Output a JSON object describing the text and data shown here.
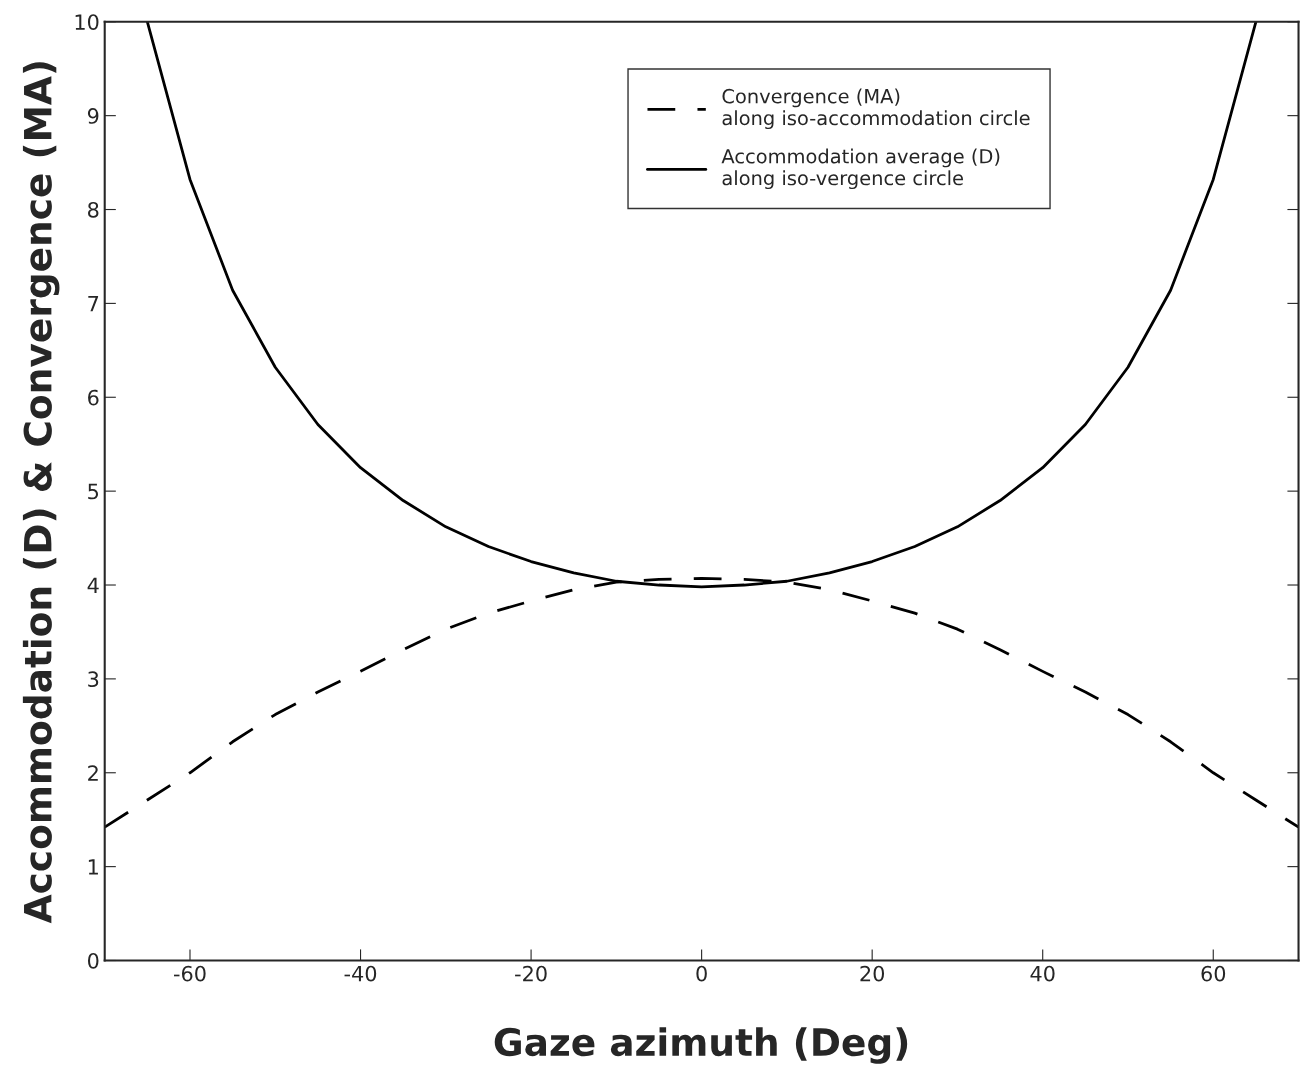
{
  "chart_data": {
    "type": "line",
    "xlabel": "Gaze azimuth (Deg)",
    "ylabel": "Accommodation (D) & Convergence (MA)",
    "xlim": [
      -70,
      70
    ],
    "ylim": [
      0,
      10
    ],
    "xticks": [
      -60,
      -40,
      -20,
      0,
      20,
      40,
      60
    ],
    "yticks": [
      0,
      1,
      2,
      3,
      4,
      5,
      6,
      7,
      8,
      9,
      10
    ],
    "grid": false,
    "legend": "top right",
    "marker": "none",
    "series": [
      {
        "name": "Convergence (MA)\nalong iso-accommodation circle",
        "color": "#000000",
        "line_style": "dashed",
        "x": [
          -70,
          -65,
          -60,
          -55,
          -50,
          -45,
          -40,
          -35,
          -30,
          -25,
          -20,
          -15,
          -10,
          -5,
          0,
          5,
          10,
          15,
          20,
          25,
          30,
          35,
          40,
          45,
          50,
          55,
          60,
          65,
          70
        ],
        "values": [
          1.42,
          1.71,
          2.0,
          2.33,
          2.62,
          2.86,
          3.08,
          3.31,
          3.53,
          3.7,
          3.83,
          3.95,
          4.03,
          4.06,
          4.07,
          4.06,
          4.03,
          3.95,
          3.83,
          3.7,
          3.53,
          3.31,
          3.08,
          2.86,
          2.62,
          2.33,
          2.0,
          1.71,
          1.42
        ]
      },
      {
        "name": "Accommodation average (D)\nalong iso-vergence circle",
        "color": "#000000",
        "line_style": "solid",
        "x": [
          -65,
          -60,
          -55,
          -50,
          -45,
          -40,
          -35,
          -30,
          -25,
          -20,
          -15,
          -10,
          -5,
          0,
          5,
          10,
          15,
          20,
          25,
          30,
          35,
          40,
          45,
          50,
          55,
          60,
          65
        ],
        "values": [
          10.0,
          8.32,
          7.14,
          6.32,
          5.71,
          5.25,
          4.9,
          4.62,
          4.41,
          4.25,
          4.13,
          4.04,
          4.0,
          3.98,
          4.0,
          4.04,
          4.13,
          4.25,
          4.41,
          4.62,
          4.9,
          5.25,
          5.71,
          6.32,
          7.14,
          8.32,
          10.0
        ]
      }
    ]
  }
}
